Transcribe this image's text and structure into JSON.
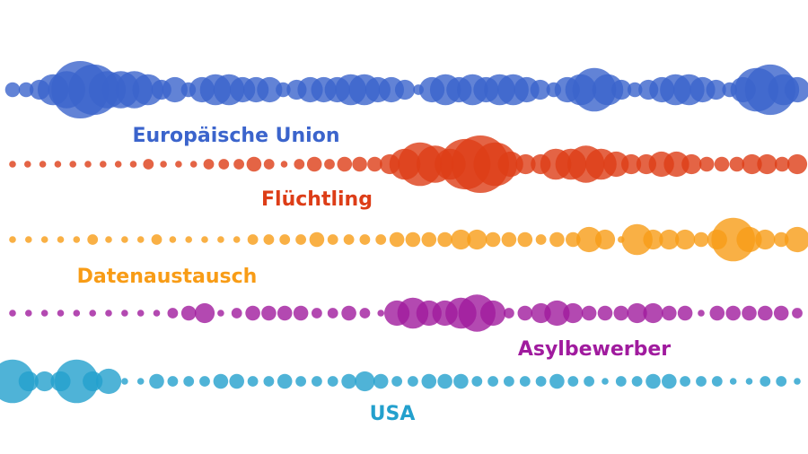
{
  "chart_data": {
    "type": "scatter",
    "title": "",
    "xlabel": "",
    "ylabel": "",
    "grid": false,
    "legend": "none",
    "value_scale": [
      0,
      10
    ],
    "series": [
      {
        "name": "Europäische Union",
        "color": "#3b64cc",
        "values": [
          3,
          3,
          4,
          6,
          7,
          10,
          9,
          7,
          7,
          7,
          6,
          4,
          5,
          3,
          5,
          6,
          6,
          5,
          5,
          5,
          3,
          4,
          5,
          5,
          5,
          6,
          6,
          5,
          5,
          4,
          2,
          5,
          6,
          5,
          6,
          5,
          6,
          6,
          5,
          4,
          3,
          5,
          6,
          8,
          6,
          4,
          3,
          4,
          5,
          6,
          6,
          5,
          4,
          3,
          5,
          8,
          9,
          6,
          5
        ]
      },
      {
        "name": "Flüchtling",
        "color": "#dd3d17",
        "values": [
          1,
          1,
          1,
          1,
          1,
          1,
          1,
          1,
          1,
          2,
          1,
          1,
          1,
          2,
          2,
          2,
          3,
          2,
          1,
          2,
          3,
          2,
          3,
          3,
          3,
          4,
          6,
          8,
          7,
          6,
          9,
          10,
          8,
          5,
          4,
          4,
          6,
          6,
          7,
          6,
          5,
          4,
          4,
          5,
          5,
          4,
          3,
          3,
          3,
          4,
          4,
          3,
          4
        ]
      },
      {
        "name": "Datenaustausch",
        "color": "#f89c16",
        "values": [
          1,
          1,
          1,
          1,
          1,
          2,
          1,
          1,
          1,
          2,
          1,
          1,
          1,
          1,
          1,
          2,
          2,
          2,
          2,
          3,
          2,
          2,
          2,
          2,
          3,
          3,
          3,
          3,
          4,
          4,
          3,
          3,
          3,
          2,
          3,
          3,
          5,
          4,
          1,
          6,
          4,
          4,
          4,
          3,
          4,
          8,
          5,
          4,
          3,
          5
        ]
      },
      {
        "name": "Asylbewerber",
        "color": "#a01b9e",
        "values": [
          1,
          1,
          1,
          1,
          1,
          1,
          1,
          1,
          1,
          1,
          2,
          3,
          4,
          1,
          2,
          3,
          3,
          3,
          3,
          2,
          2,
          3,
          2,
          1,
          5,
          6,
          5,
          5,
          6,
          7,
          5,
          2,
          3,
          4,
          5,
          4,
          3,
          3,
          3,
          4,
          4,
          3,
          3,
          1,
          3,
          3,
          3,
          3,
          3,
          2
        ]
      },
      {
        "name": "USA",
        "color": "#23a0cd",
        "values": [
          8,
          4,
          4,
          4,
          8,
          4,
          5,
          1,
          1,
          3,
          2,
          2,
          2,
          3,
          3,
          2,
          2,
          3,
          2,
          2,
          2,
          3,
          4,
          3,
          2,
          2,
          3,
          3,
          3,
          2,
          2,
          2,
          2,
          2,
          3,
          2,
          2,
          1,
          2,
          2,
          3,
          3,
          2,
          2,
          2,
          1,
          1,
          2,
          2,
          1
        ]
      }
    ]
  }
}
